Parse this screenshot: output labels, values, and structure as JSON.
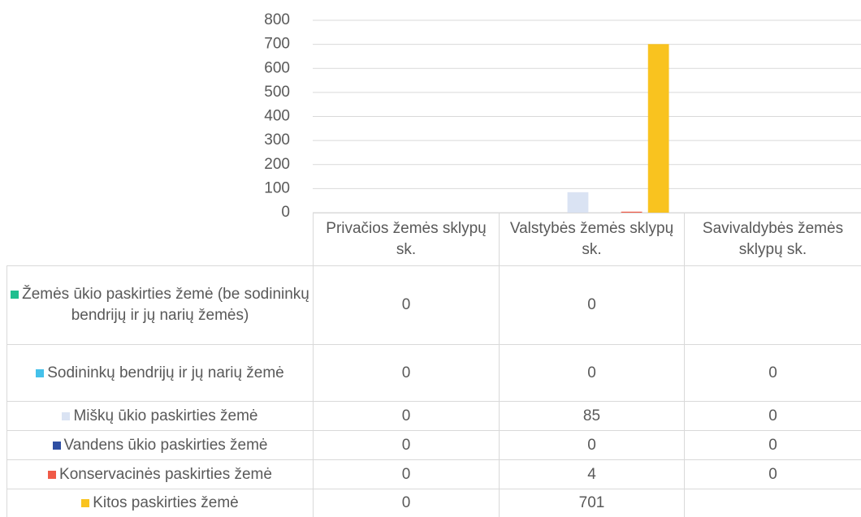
{
  "chart_data": {
    "type": "bar",
    "categories": [
      "Privačios žemės sklypų sk.",
      "Valstybės žemės sklypų sk.",
      "Savivaldybės žemės sklypų sk."
    ],
    "series": [
      {
        "name": "Žemės ūkio paskirties žemė (be sodininkų bendrijų ir jų narių žemės)",
        "color": "#1fbf8f",
        "values": [
          0,
          0,
          null
        ]
      },
      {
        "name": "Sodininkų bendrijų ir jų narių žemė",
        "color": "#45c1ea",
        "values": [
          0,
          0,
          0
        ]
      },
      {
        "name": "Miškų ūkio paskirties žemė",
        "color": "#dae3f3",
        "values": [
          0,
          85,
          0
        ]
      },
      {
        "name": "Vandens ūkio paskirties žemė",
        "color": "#2e4fa3",
        "values": [
          0,
          0,
          0
        ]
      },
      {
        "name": "Konservacinės paskirties žemė",
        "color": "#f05a47",
        "values": [
          0,
          4,
          0
        ]
      },
      {
        "name": "Kitos paskirties žemė",
        "color": "#f9c31f",
        "values": [
          0,
          701,
          null
        ]
      }
    ],
    "ylim": [
      0,
      800
    ],
    "yticks": [
      0,
      100,
      200,
      300,
      400,
      500,
      600,
      700,
      800
    ],
    "grid": true
  }
}
